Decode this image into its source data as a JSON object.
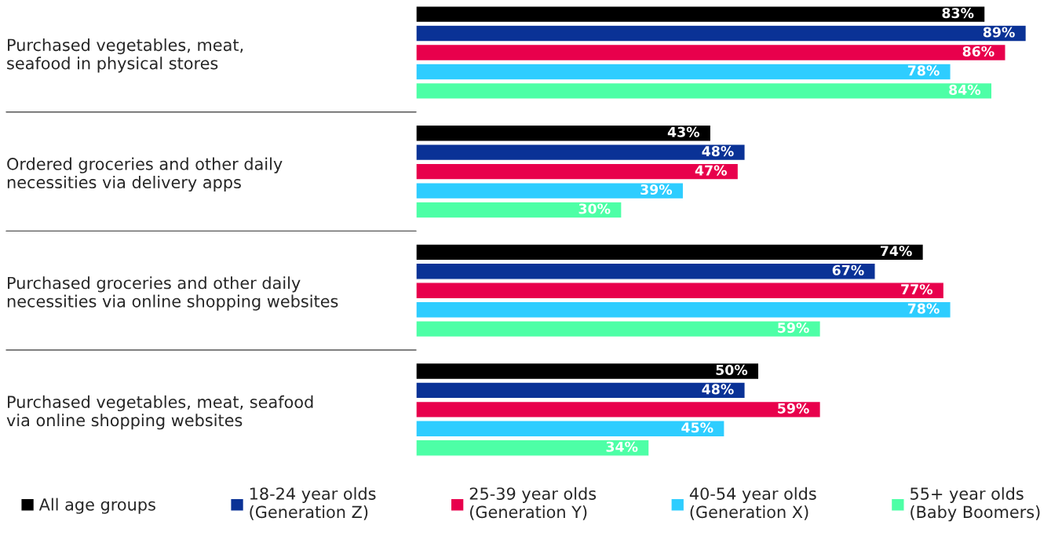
{
  "chart_data": {
    "type": "bar",
    "orientation": "horizontal",
    "legend": "bottom",
    "tick_labels": "y",
    "grid": false,
    "categories": [
      "Purchased vegetables, meat,\nseafood in physical stores",
      "Ordered groceries and other daily\nnecessities via delivery apps",
      "Purchased groceries and other daily\nnecessities via online shopping websites",
      "Purchased vegetables, meat, seafood\nvia online shopping websites"
    ],
    "series": [
      {
        "name": "All age groups",
        "color": "#000000",
        "values": [
          83,
          43,
          74,
          50
        ],
        "value_labels": [
          "83%",
          "43%",
          "74%",
          "50%"
        ]
      },
      {
        "name": "18-24 year olds\n(Generation Z)",
        "color": "#0a3296",
        "values": [
          89,
          48,
          67,
          48
        ],
        "value_labels": [
          "89%",
          "48%",
          "67%",
          "48%"
        ]
      },
      {
        "name": "25-39 year olds\n(Generation Y)",
        "color": "#e8004c",
        "values": [
          86,
          47,
          77,
          59
        ],
        "value_labels": [
          "86%",
          "47%",
          "77%",
          "59%"
        ]
      },
      {
        "name": "40-54 year olds\n(Generation X)",
        "color": "#2ecdff",
        "values": [
          78,
          39,
          78,
          45
        ],
        "value_labels": [
          "78%",
          "39%",
          "78%",
          "45%"
        ]
      },
      {
        "name": "55+ year olds\n(Baby Boomers)",
        "color": "#4dffa6",
        "values": [
          84,
          30,
          59,
          34
        ],
        "value_labels": [
          "84%",
          "30%",
          "59%",
          "34%"
        ]
      }
    ]
  }
}
